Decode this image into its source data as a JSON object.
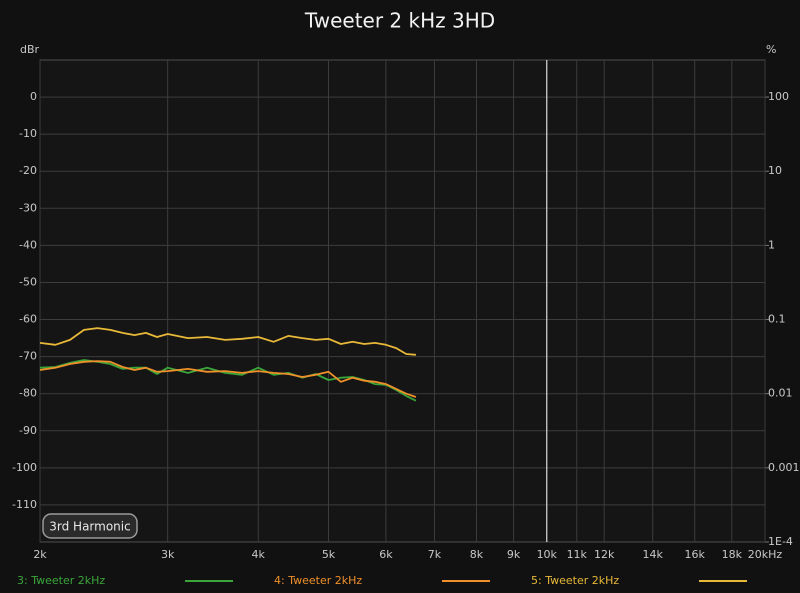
{
  "chart_data": {
    "type": "line",
    "title": "Tweeter 2 kHz 3HD",
    "ylabel": "dBr",
    "y2label": "%",
    "badge": "3rd Harmonic",
    "xscale": "log",
    "y2scale": "log",
    "grid": true,
    "cursor_x": 10000,
    "xlim": [
      2000,
      20000
    ],
    "xticks": [
      {
        "value": 2000,
        "label": "2k"
      },
      {
        "value": 3000,
        "label": "3k"
      },
      {
        "value": 4000,
        "label": "4k"
      },
      {
        "value": 5000,
        "label": "5k"
      },
      {
        "value": 6000,
        "label": "6k"
      },
      {
        "value": 7000,
        "label": "7k"
      },
      {
        "value": 8000,
        "label": "8k"
      },
      {
        "value": 9000,
        "label": "9k"
      },
      {
        "value": 10000,
        "label": "10k"
      },
      {
        "value": 11000,
        "label": "11k"
      },
      {
        "value": 12000,
        "label": "12k"
      },
      {
        "value": 14000,
        "label": "14k"
      },
      {
        "value": 16000,
        "label": "16k"
      },
      {
        "value": 18000,
        "label": "18k"
      },
      {
        "value": 20000,
        "label": "20kHz"
      }
    ],
    "ylim": [
      -120,
      10
    ],
    "yticks": [
      0,
      -10,
      -20,
      -30,
      -40,
      -50,
      -60,
      -70,
      -80,
      -90,
      -100,
      -110
    ],
    "y2lim": [
      0.0001,
      316.2
    ],
    "y2ticks": [
      100,
      10,
      1,
      0.1,
      0.01,
      0.001,
      {
        "value": 0.0001,
        "label": "1E-4"
      }
    ],
    "x": [
      2000,
      2100,
      2200,
      2300,
      2400,
      2500,
      2600,
      2700,
      2800,
      2900,
      3000,
      3200,
      3400,
      3600,
      3800,
      4000,
      4200,
      4400,
      4600,
      4800,
      5000,
      5200,
      5400,
      5600,
      5800,
      6000,
      6200,
      6400,
      6600
    ],
    "series": [
      {
        "name": "3: Tweeter 2kHz",
        "color": "#3aa63a",
        "values": [
          -73,
          -72.8,
          -71.7,
          -70.9,
          -71.4,
          -72,
          -73.3,
          -73,
          -73,
          -74.7,
          -73,
          -74.4,
          -73,
          -74.4,
          -74.9,
          -73,
          -74.9,
          -74.4,
          -75.7,
          -74.7,
          -76.3,
          -75.7,
          -75.5,
          -76.3,
          -77.4,
          -77.6,
          -79,
          -80.6,
          -81.9
        ]
      },
      {
        "name": "4: Tweeter 2kHz",
        "color": "#f0902a",
        "values": [
          -73.6,
          -73,
          -72,
          -71.4,
          -71.2,
          -71.4,
          -72.8,
          -73.6,
          -73,
          -74.1,
          -73.9,
          -73.3,
          -74.1,
          -73.9,
          -74.4,
          -73.9,
          -74.4,
          -74.7,
          -75.5,
          -74.9,
          -74.1,
          -76.8,
          -75.7,
          -76.5,
          -76.8,
          -77.4,
          -78.7,
          -80,
          -80.9
        ]
      },
      {
        "name": "5: Tweeter 2kHz",
        "color": "#e8b838",
        "values": [
          -66.3,
          -66.8,
          -65.5,
          -62.8,
          -62.3,
          -62.8,
          -63.6,
          -64.2,
          -63.6,
          -64.7,
          -63.9,
          -65,
          -64.7,
          -65.5,
          -65.2,
          -64.7,
          -66,
          -64.4,
          -65,
          -65.5,
          -65.2,
          -66.6,
          -66,
          -66.6,
          -66.3,
          -66.8,
          -67.7,
          -69.3,
          -69.5
        ]
      }
    ]
  }
}
